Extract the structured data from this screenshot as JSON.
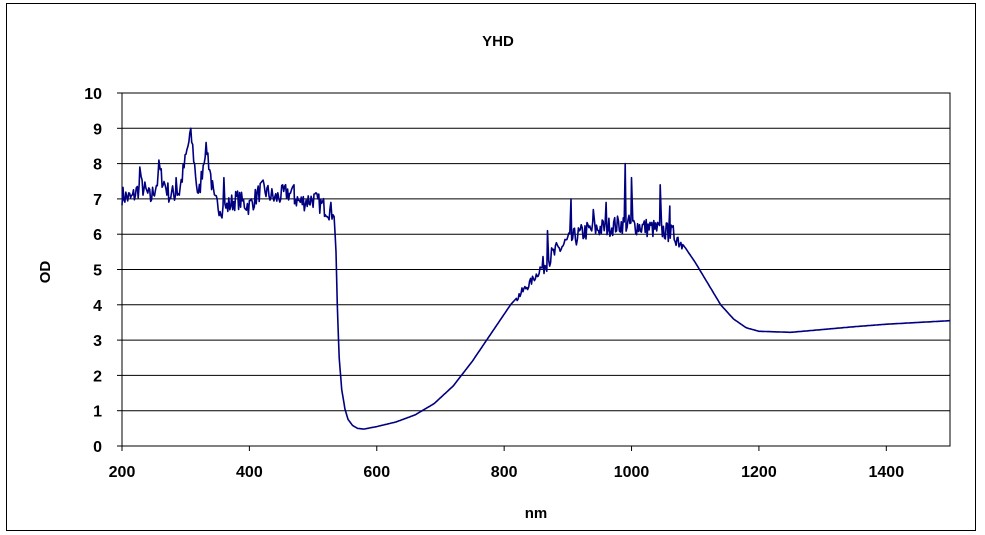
{
  "chart_data": {
    "type": "line",
    "title": "YHD",
    "xlabel": "nm",
    "ylabel": "OD",
    "xlim": [
      200,
      1500
    ],
    "ylim": [
      0,
      10
    ],
    "x_ticks": [
      "200",
      "400",
      "600",
      "800",
      "1000",
      "1200",
      "1400"
    ],
    "y_ticks": [
      "0",
      "1",
      "2",
      "3",
      "4",
      "5",
      "6",
      "7",
      "8",
      "9",
      "10"
    ],
    "grid": "horizontal",
    "legend": "none",
    "line_color": "#000080",
    "series": [
      {
        "points": [
          [
            200,
            7.1
          ],
          [
            215,
            7.0
          ],
          [
            230,
            7.4
          ],
          [
            245,
            7.0
          ],
          [
            260,
            7.7
          ],
          [
            275,
            7.1
          ],
          [
            290,
            7.2
          ],
          [
            308,
            8.9
          ],
          [
            320,
            7.0
          ],
          [
            332,
            8.6
          ],
          [
            345,
            6.9
          ],
          [
            360,
            6.7
          ],
          [
            380,
            7.0
          ],
          [
            400,
            6.8
          ],
          [
            420,
            7.3
          ],
          [
            440,
            7.0
          ],
          [
            460,
            7.2
          ],
          [
            480,
            6.9
          ],
          [
            500,
            7.0
          ],
          [
            515,
            6.8
          ],
          [
            528,
            6.65
          ],
          [
            533,
            6.5
          ],
          [
            536,
            5.5
          ],
          [
            538,
            4.0
          ],
          [
            541,
            2.5
          ],
          [
            545,
            1.6
          ],
          [
            550,
            1.05
          ],
          [
            555,
            0.75
          ],
          [
            562,
            0.58
          ],
          [
            570,
            0.5
          ],
          [
            580,
            0.48
          ],
          [
            600,
            0.55
          ],
          [
            630,
            0.68
          ],
          [
            660,
            0.88
          ],
          [
            690,
            1.2
          ],
          [
            720,
            1.7
          ],
          [
            750,
            2.4
          ],
          [
            780,
            3.2
          ],
          [
            810,
            4.0
          ],
          [
            840,
            4.6
          ],
          [
            870,
            5.3
          ],
          [
            900,
            5.8
          ],
          [
            930,
            6.1
          ],
          [
            960,
            6.2
          ],
          [
            990,
            6.3
          ],
          [
            1020,
            6.2
          ],
          [
            1050,
            6.1
          ],
          [
            1070,
            5.95
          ],
          [
            1085,
            5.6
          ],
          [
            1100,
            5.2
          ],
          [
            1120,
            4.6
          ],
          [
            1140,
            4.0
          ],
          [
            1160,
            3.6
          ],
          [
            1180,
            3.35
          ],
          [
            1200,
            3.25
          ],
          [
            1250,
            3.22
          ],
          [
            1300,
            3.3
          ],
          [
            1350,
            3.38
          ],
          [
            1400,
            3.45
          ],
          [
            1450,
            3.5
          ],
          [
            1500,
            3.55
          ]
        ],
        "spikes": [
          [
            228,
            7.9
          ],
          [
            258,
            8.1
          ],
          [
            285,
            7.6
          ],
          [
            308,
            9.0
          ],
          [
            332,
            8.6
          ],
          [
            360,
            7.6
          ],
          [
            420,
            7.5
          ],
          [
            470,
            7.4
          ],
          [
            868,
            6.1
          ],
          [
            905,
            7.0
          ],
          [
            940,
            6.7
          ],
          [
            960,
            6.9
          ],
          [
            990,
            8.0
          ],
          [
            1000,
            7.6
          ],
          [
            1045,
            7.4
          ],
          [
            1060,
            6.8
          ]
        ]
      }
    ]
  }
}
